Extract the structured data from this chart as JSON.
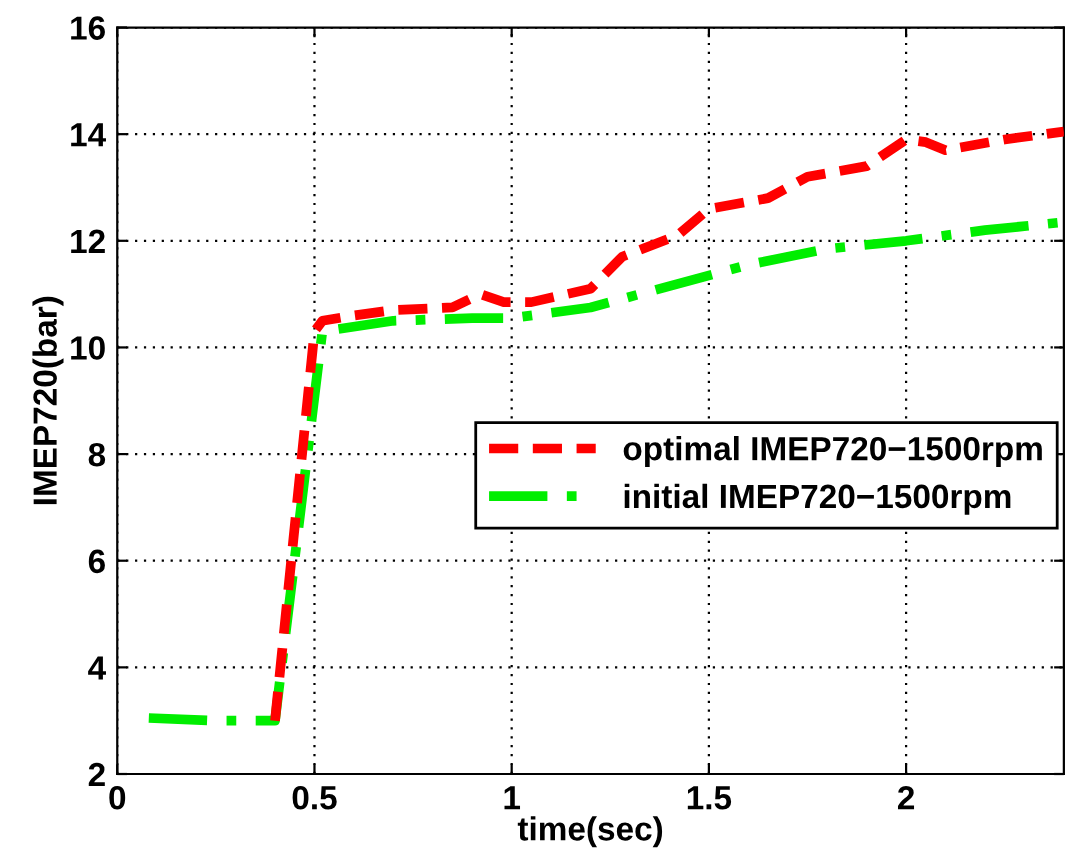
{
  "chart_data": {
    "type": "line",
    "xlabel": "time(sec)",
    "ylabel": "IMEP720(bar)",
    "xlim": [
      0,
      2.4
    ],
    "xticks": [
      0,
      0.5,
      1,
      1.5,
      2
    ],
    "ylim": [
      2,
      16
    ],
    "yticks": [
      2,
      4,
      6,
      8,
      10,
      12,
      14,
      16
    ],
    "grid": true,
    "legend": "right",
    "series": [
      {
        "name": "optimal IMEP720−1500rpm",
        "color": "#ff0000",
        "line_style": "dashed",
        "x": [
          0.4,
          0.5,
          0.52,
          0.6,
          0.7,
          0.85,
          0.92,
          0.98,
          1.05,
          1.2,
          1.28,
          1.42,
          1.5,
          1.65,
          1.75,
          1.9,
          2.0,
          2.05,
          2.1,
          2.25,
          2.4
        ],
        "values": [
          3.0,
          10.3,
          10.5,
          10.6,
          10.7,
          10.75,
          11.0,
          10.85,
          10.85,
          11.1,
          11.7,
          12.1,
          12.6,
          12.8,
          13.2,
          13.4,
          13.9,
          13.85,
          13.7,
          13.9,
          14.05
        ]
      },
      {
        "name": "initial IMEP720−1500rpm",
        "color": "#00ee00",
        "line_style": "dashdot",
        "x": [
          0.08,
          0.25,
          0.4,
          0.52,
          0.7,
          0.9,
          1.0,
          1.2,
          1.4,
          1.6,
          1.8,
          2.0,
          2.2,
          2.4
        ],
        "values": [
          3.05,
          3.0,
          3.0,
          10.3,
          10.5,
          10.55,
          10.55,
          10.75,
          11.15,
          11.55,
          11.85,
          12.0,
          12.2,
          12.35
        ]
      }
    ]
  }
}
